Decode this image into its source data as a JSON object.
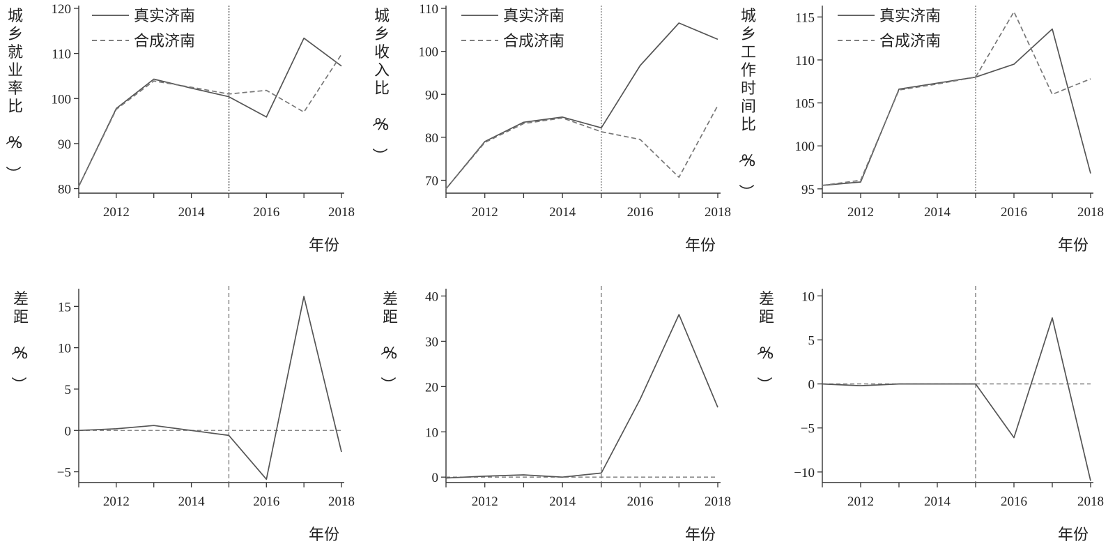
{
  "chart_data": [
    {
      "type": "line",
      "ylabel": "城乡就业率比（%）",
      "xlabel": "年份",
      "x": [
        2011,
        2012,
        2013,
        2014,
        2015,
        2016,
        2017,
        2018
      ],
      "xticks": [
        2012,
        2014,
        2016,
        2018
      ],
      "ylim": [
        79,
        120
      ],
      "yticks": [
        80,
        90,
        100,
        110,
        120
      ],
      "vline": 2015,
      "legend": "top-left",
      "series": [
        {
          "name": "真实济南",
          "style": "solid",
          "values": [
            80.5,
            97.8,
            104.3,
            102.3,
            100.4,
            95.9,
            113.4,
            107.2
          ]
        },
        {
          "name": "合成济南",
          "style": "dashed",
          "values": [
            80.5,
            97.6,
            103.9,
            102.5,
            101.0,
            101.8,
            97.0,
            109.8
          ]
        }
      ]
    },
    {
      "type": "line",
      "ylabel": "城乡收入比（%）",
      "xlabel": "年份",
      "x": [
        2011,
        2012,
        2013,
        2014,
        2015,
        2016,
        2017,
        2018
      ],
      "xticks": [
        2012,
        2014,
        2016,
        2018
      ],
      "ylim": [
        67,
        110
      ],
      "yticks": [
        70,
        80,
        90,
        100,
        110
      ],
      "vline": 2015,
      "legend": "top-left",
      "series": [
        {
          "name": "真实济南",
          "style": "solid",
          "values": [
            68.0,
            79.0,
            83.5,
            84.7,
            82.2,
            96.7,
            106.6,
            102.8
          ]
        },
        {
          "name": "合成济南",
          "style": "dashed",
          "values": [
            68.0,
            78.8,
            83.2,
            84.5,
            81.3,
            79.5,
            70.7,
            87.4
          ]
        }
      ]
    },
    {
      "type": "line",
      "ylabel": "城乡工作时间比（%）",
      "xlabel": "年份",
      "x": [
        2011,
        2012,
        2013,
        2014,
        2015,
        2016,
        2017,
        2018
      ],
      "xticks": [
        2012,
        2014,
        2016,
        2018
      ],
      "ylim": [
        94.5,
        116
      ],
      "yticks": [
        95,
        100,
        105,
        110,
        115
      ],
      "vline": 2015,
      "legend": "top-left",
      "series": [
        {
          "name": "真实济南",
          "style": "solid",
          "values": [
            95.4,
            95.8,
            106.6,
            107.3,
            108.0,
            109.5,
            113.6,
            96.8
          ]
        },
        {
          "name": "合成济南",
          "style": "dashed",
          "values": [
            95.4,
            96.0,
            106.5,
            107.2,
            108.0,
            115.6,
            106.0,
            107.8
          ]
        }
      ]
    },
    {
      "type": "line",
      "ylabel": "差距（%）",
      "xlabel": "年份",
      "x": [
        2011,
        2012,
        2013,
        2014,
        2015,
        2016,
        2017,
        2018
      ],
      "xticks": [
        2012,
        2014,
        2016,
        2018
      ],
      "ylim": [
        -6.3,
        16.8
      ],
      "yticks": [
        -5,
        0,
        5,
        10,
        15
      ],
      "vline": 2015,
      "hline": 0,
      "series": [
        {
          "style": "solid",
          "values": [
            0.0,
            0.2,
            0.6,
            0.0,
            -0.6,
            -5.9,
            16.2,
            -2.6
          ]
        }
      ]
    },
    {
      "type": "line",
      "ylabel": "差距（%）",
      "xlabel": "年份",
      "x": [
        2011,
        2012,
        2013,
        2014,
        2015,
        2016,
        2017,
        2018
      ],
      "xticks": [
        2012,
        2014,
        2016,
        2018
      ],
      "ylim": [
        -1.2,
        41
      ],
      "yticks": [
        0,
        10,
        20,
        30,
        40
      ],
      "vline": 2015,
      "hline": 0,
      "series": [
        {
          "style": "solid",
          "values": [
            -0.2,
            0.2,
            0.5,
            0.0,
            0.9,
            17.2,
            35.9,
            15.4
          ]
        }
      ]
    },
    {
      "type": "line",
      "ylabel": "差距（%）",
      "xlabel": "年份",
      "x": [
        2011,
        2012,
        2013,
        2014,
        2015,
        2016,
        2017,
        2018
      ],
      "xticks": [
        2012,
        2014,
        2016,
        2018
      ],
      "ylim": [
        -11.2,
        10.5
      ],
      "yticks": [
        -10,
        -5,
        0,
        5,
        10
      ],
      "vline": 2015,
      "hline": 0,
      "series": [
        {
          "style": "solid",
          "values": [
            0.0,
            -0.2,
            0.0,
            0.0,
            0.0,
            -6.1,
            7.5,
            -11.0
          ]
        }
      ]
    }
  ]
}
